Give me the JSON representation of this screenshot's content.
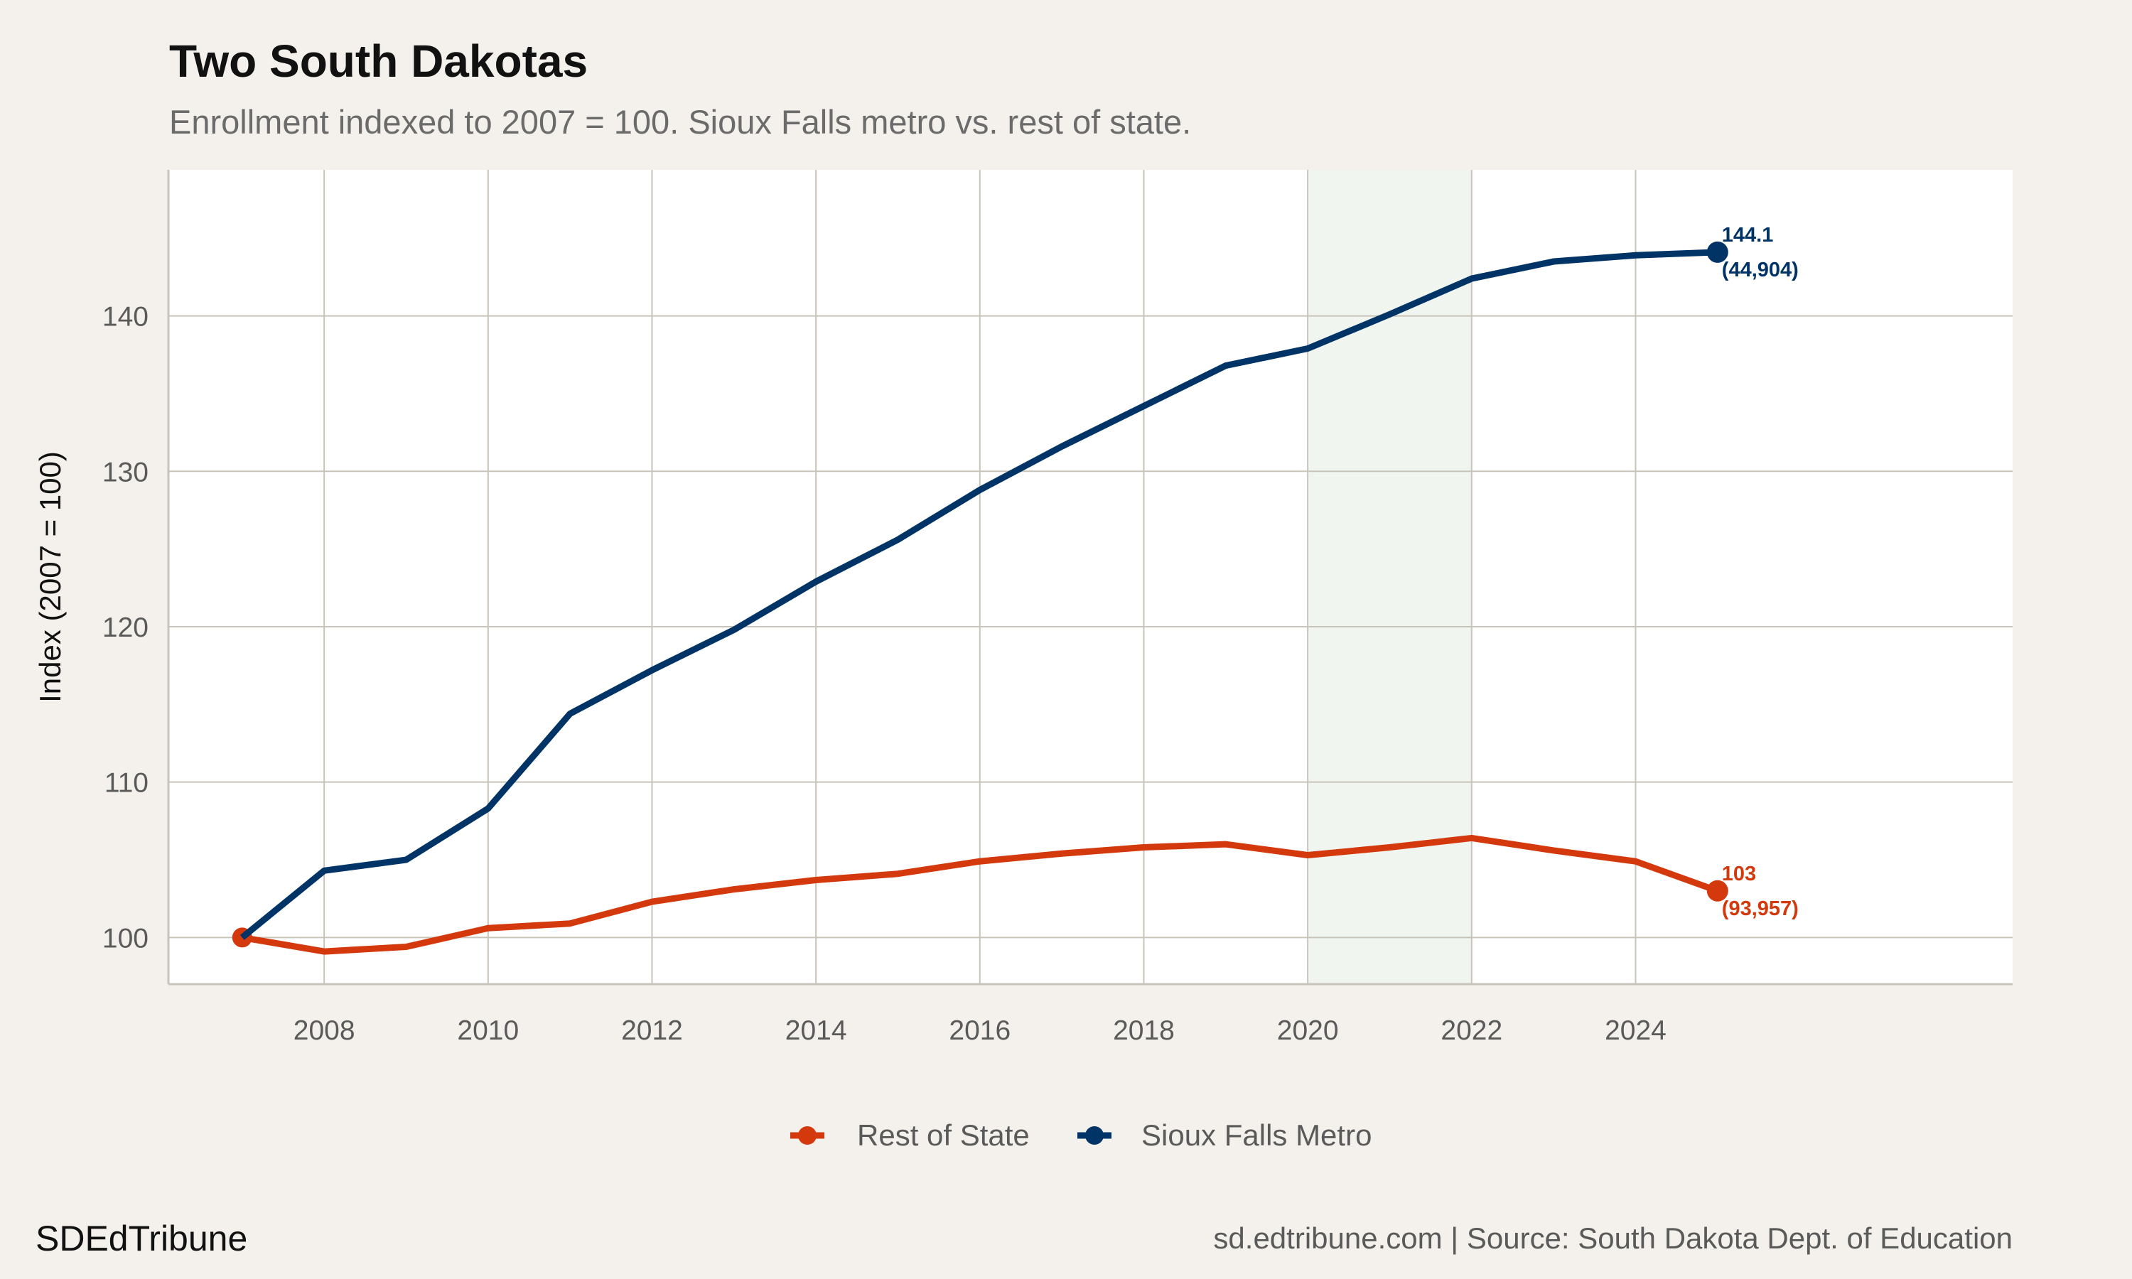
{
  "chart_data": {
    "type": "line",
    "title": "Two South Dakotas",
    "subtitle": "Enrollment indexed to 2007 = 100. Sioux Falls metro vs. rest of state.",
    "xlabel": "",
    "ylabel": "Index (2007 = 100)",
    "x": [
      2007,
      2008,
      2009,
      2010,
      2011,
      2012,
      2013,
      2014,
      2015,
      2016,
      2017,
      2018,
      2019,
      2020,
      2021,
      2022,
      2023,
      2024,
      2025
    ],
    "x_ticks": [
      "2008",
      "2010",
      "2012",
      "2014",
      "2016",
      "2018",
      "2020",
      "2022",
      "2024"
    ],
    "y_ticks": [
      "100",
      "110",
      "120",
      "130",
      "140"
    ],
    "xlim": [
      2006.1,
      2028.6
    ],
    "ylim": [
      97.0,
      149.4
    ],
    "grid": true,
    "shaded_range": [
      2020,
      2022
    ],
    "legend_position": "bottom",
    "series": [
      {
        "name": "Rest of State",
        "color": "#d4380d",
        "values": [
          100,
          99.1,
          99.4,
          100.6,
          100.9,
          102.3,
          103.1,
          103.7,
          104.1,
          104.9,
          105.4,
          105.8,
          106.0,
          105.3,
          105.8,
          106.4,
          105.6,
          104.9,
          103.0
        ],
        "end_label": "103",
        "end_sublabel": "(93,957)"
      },
      {
        "name": "Sioux Falls Metro",
        "color": "#003366",
        "values": [
          100,
          104.3,
          105.0,
          108.3,
          114.4,
          117.2,
          119.8,
          122.9,
          125.6,
          128.8,
          131.6,
          134.2,
          136.8,
          137.9,
          140.1,
          142.4,
          143.5,
          143.9,
          144.1
        ],
        "end_label": "144.1",
        "end_sublabel": "(44,904)"
      }
    ]
  },
  "footer": {
    "brand": "SDEdTribune",
    "source": "sd.edtribune.com | Source: South Dakota Dept. of Education"
  },
  "colors": {
    "background": "#f4f1ec",
    "panel": "#ffffff",
    "grid": "#c9c4ba",
    "shade": "#f0f5f0"
  }
}
